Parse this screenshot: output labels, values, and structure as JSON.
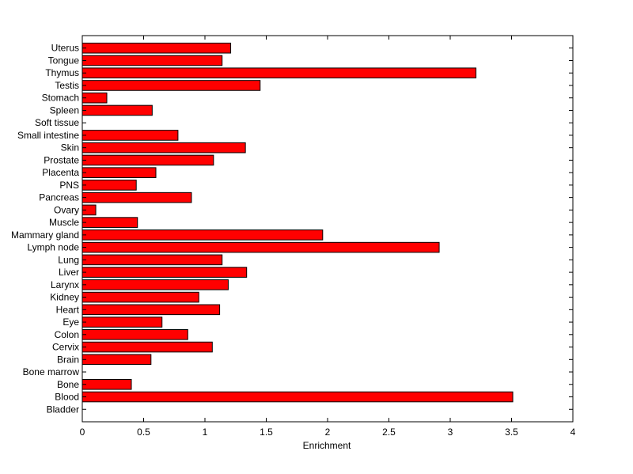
{
  "chart_data": {
    "type": "bar",
    "orientation": "horizontal",
    "title": "",
    "xlabel": "Enrichment",
    "ylabel": "",
    "xlim": [
      0,
      4
    ],
    "xticks": [
      0,
      0.5,
      1,
      1.5,
      2,
      2.5,
      3,
      3.5,
      4
    ],
    "xtick_labels": [
      "0",
      "0.5",
      "1",
      "1.5",
      "2",
      "2.5",
      "3",
      "3.5",
      "4"
    ],
    "grid": false,
    "bar_color": "#ff0000",
    "categories_top_to_bottom": [
      "Uterus",
      "Tongue",
      "Thymus",
      "Testis",
      "Stomach",
      "Spleen",
      "Soft tissue",
      "Small intestine",
      "Skin",
      "Prostate",
      "Placenta",
      "PNS",
      "Pancreas",
      "Ovary",
      "Muscle",
      "Mammary gland",
      "Lymph node",
      "Lung",
      "Liver",
      "Larynx",
      "Kidney",
      "Heart",
      "Eye",
      "Colon",
      "Cervix",
      "Brain",
      "Bone marrow",
      "Bone",
      "Blood",
      "Bladder"
    ],
    "values": [
      1.21,
      1.14,
      3.21,
      1.45,
      0.2,
      0.57,
      0,
      0.78,
      1.33,
      1.07,
      0.6,
      0.44,
      0.89,
      0.11,
      0.45,
      1.96,
      2.91,
      1.14,
      1.34,
      1.19,
      0.95,
      1.12,
      0.65,
      0.86,
      1.06,
      0.56,
      0,
      0.4,
      3.51,
      0
    ]
  }
}
